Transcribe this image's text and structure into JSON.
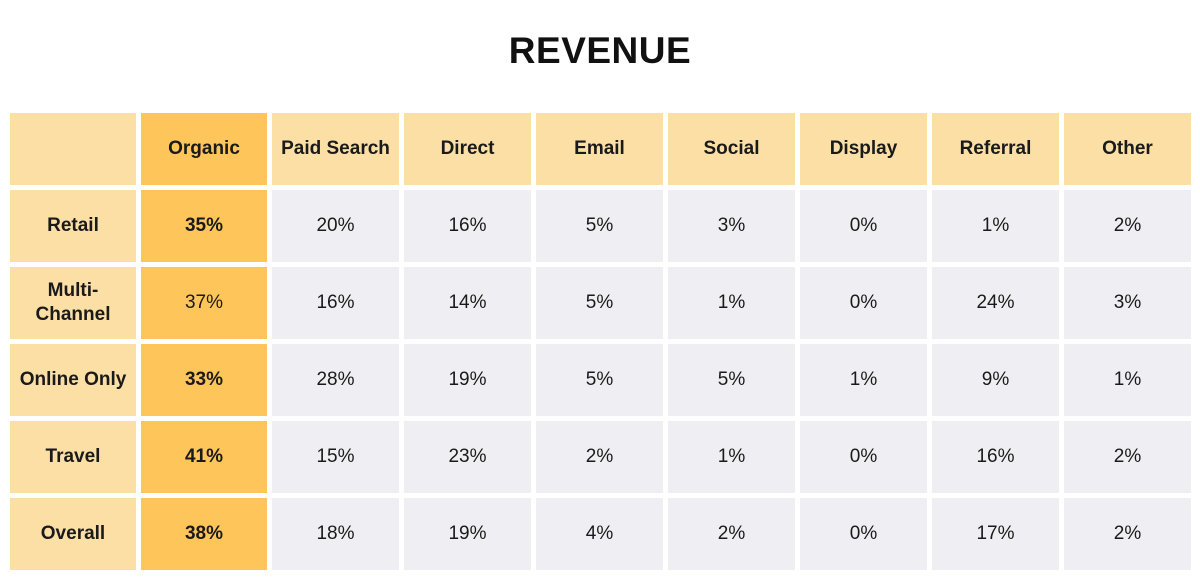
{
  "chart_data": {
    "type": "table",
    "title": "REVENUE",
    "columns": [
      "Organic",
      "Paid Search",
      "Direct",
      "Email",
      "Social",
      "Display",
      "Referral",
      "Other"
    ],
    "rows": [
      {
        "label": "Retail",
        "values": [
          "35%",
          "20%",
          "16%",
          "5%",
          "3%",
          "0%",
          "1%",
          "2%"
        ],
        "highlight_bold": true
      },
      {
        "label": "Multi-Channel",
        "label_lines": [
          "Multi-",
          "Channel"
        ],
        "values": [
          "37%",
          "16%",
          "14%",
          "5%",
          "1%",
          "0%",
          "24%",
          "3%"
        ],
        "highlight_bold": false
      },
      {
        "label": "Online Only",
        "values": [
          "33%",
          "28%",
          "19%",
          "5%",
          "5%",
          "1%",
          "9%",
          "1%"
        ],
        "highlight_bold": true
      },
      {
        "label": "Travel",
        "values": [
          "41%",
          "15%",
          "23%",
          "2%",
          "1%",
          "0%",
          "16%",
          "2%"
        ],
        "highlight_bold": true
      },
      {
        "label": "Overall",
        "values": [
          "38%",
          "18%",
          "19%",
          "4%",
          "2%",
          "0%",
          "17%",
          "2%"
        ],
        "highlight_bold": true
      }
    ],
    "highlighted_column": "Organic"
  },
  "colors": {
    "header_bg": "#fbdfa5",
    "highlight_bg": "#fec55a",
    "cell_bg": "#efeff3",
    "text": "#1a1a1a"
  }
}
